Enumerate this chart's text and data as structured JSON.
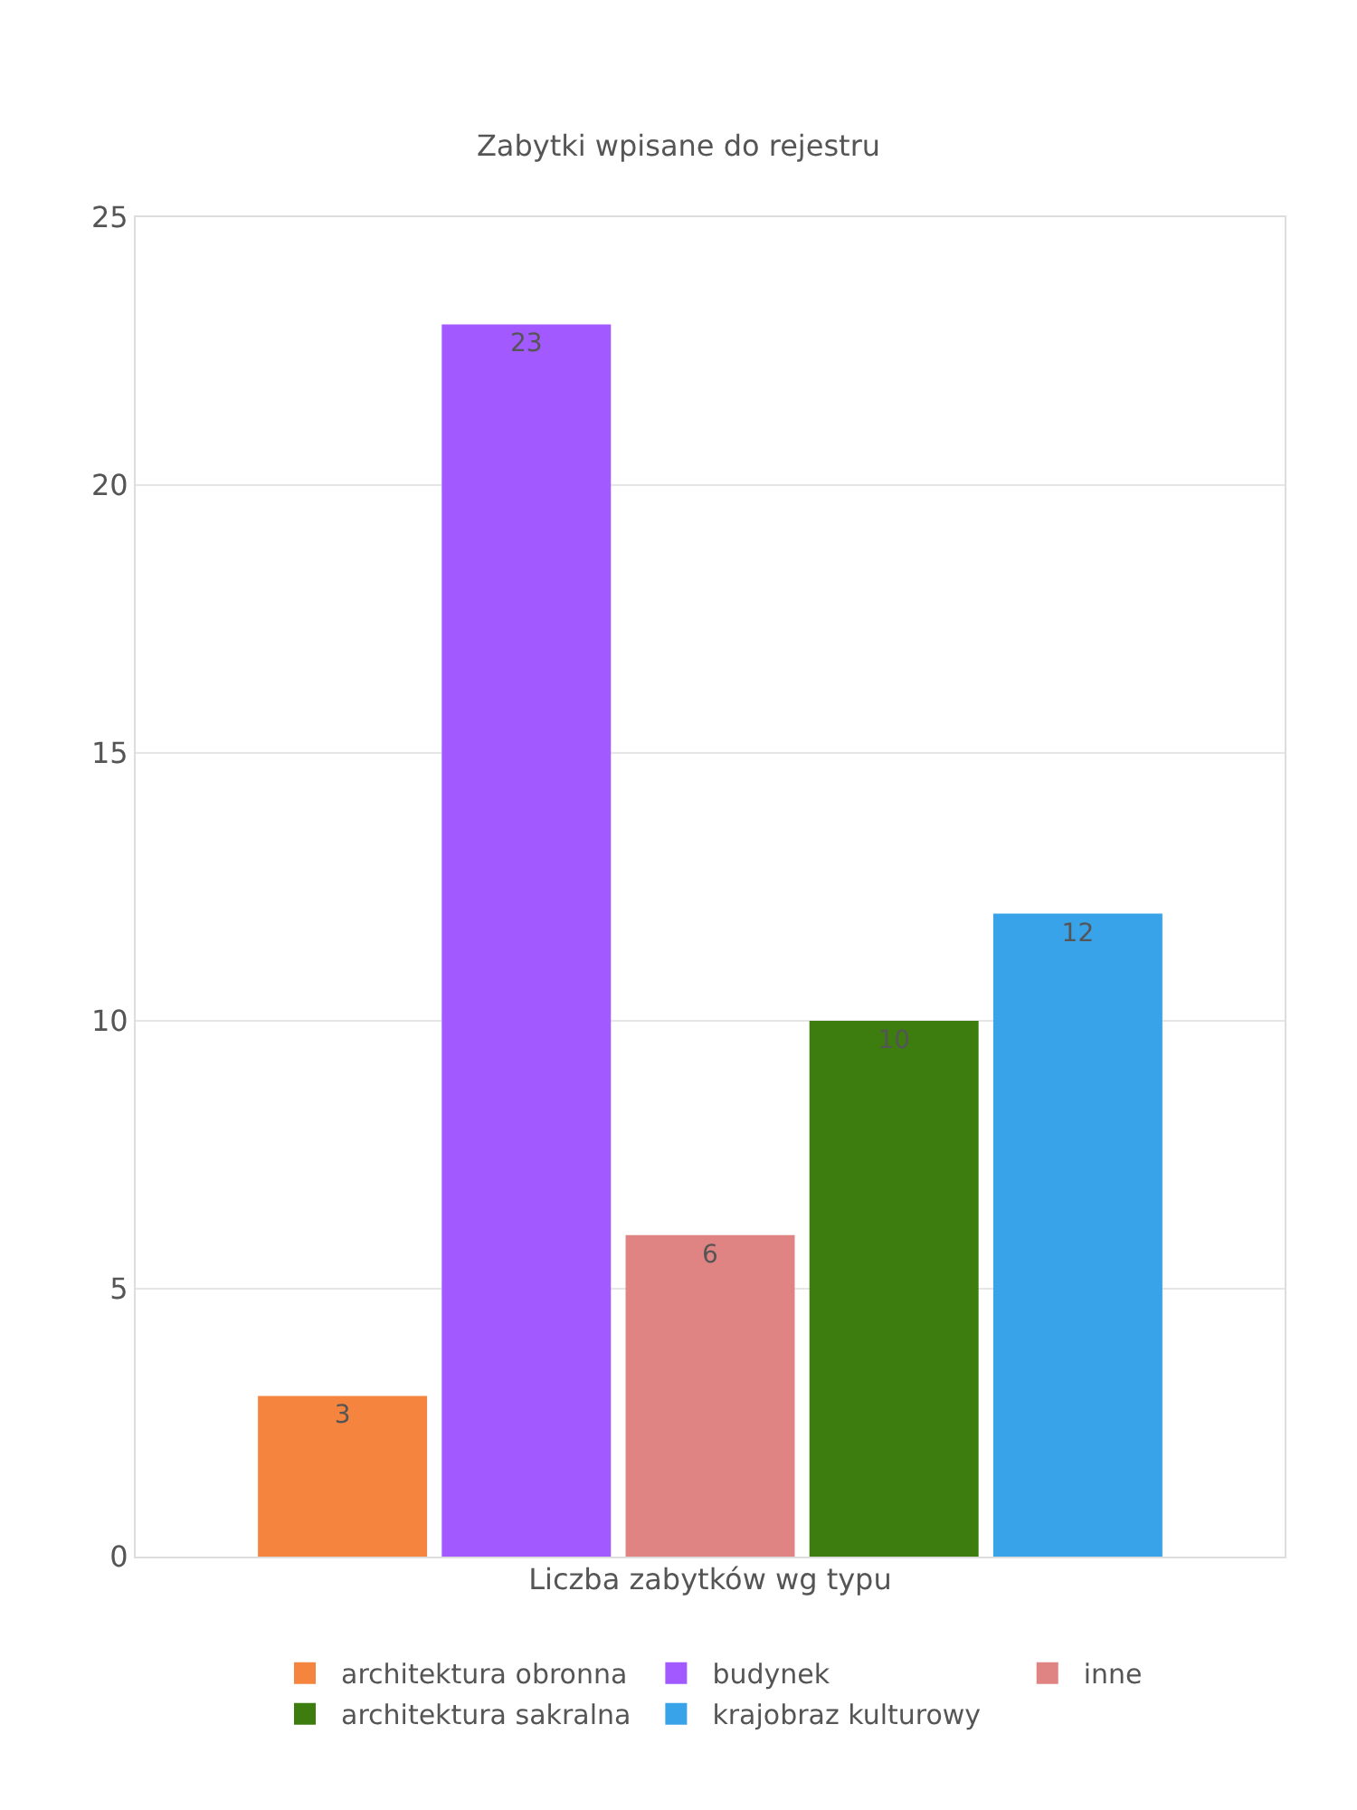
{
  "chart_data": {
    "type": "bar",
    "title": "Zabytki wpisane do rejestru",
    "xlabel": "Liczba zabytków wg typu",
    "categories": [
      null
    ],
    "series": [
      {
        "name": "architektura obronna",
        "color": "#f5843f",
        "values": [
          3
        ]
      },
      {
        "name": "budynek",
        "color": "#a259ff",
        "values": [
          23
        ]
      },
      {
        "name": "inne",
        "color": "#e08383",
        "values": [
          6
        ]
      },
      {
        "name": "architektura sakralna",
        "color": "#3d7c0e",
        "values": [
          10
        ]
      },
      {
        "name": "krajobraz kulturowy",
        "color": "#38a3e8",
        "values": [
          12
        ]
      }
    ],
    "ylim": [
      0,
      25
    ],
    "yticks": [
      0,
      5,
      10,
      15,
      20,
      25
    ],
    "grid": "y",
    "legend": "bottom",
    "data_labels": true
  }
}
